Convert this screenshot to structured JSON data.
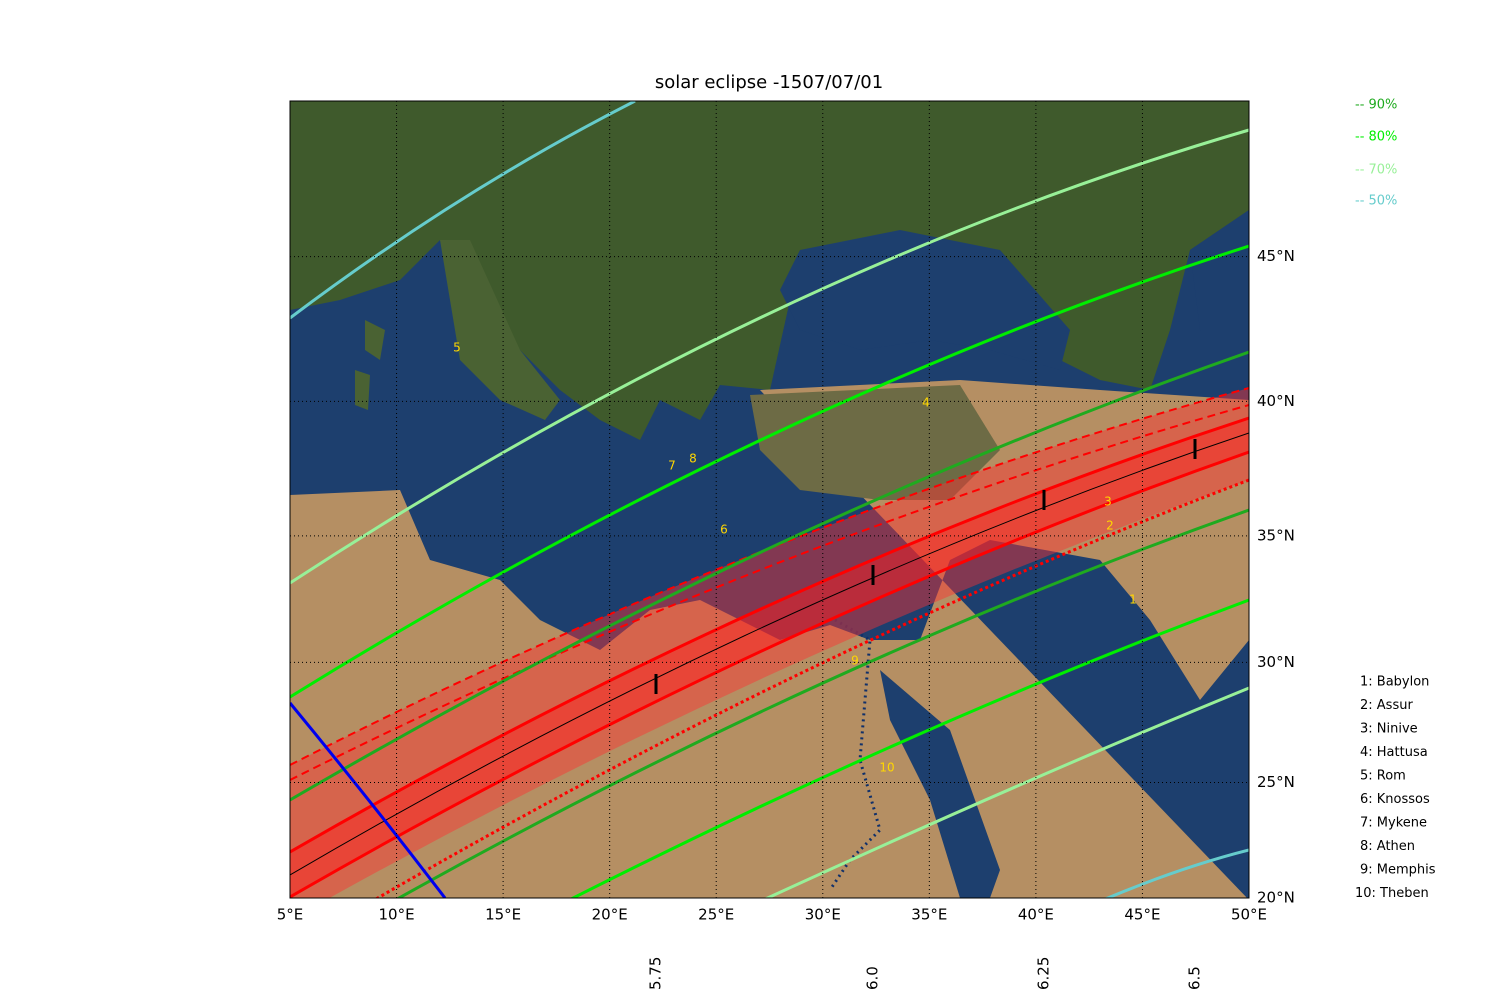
{
  "chart_data": {
    "type": "map",
    "title": "solar eclipse -1507/07/01",
    "projection": "mercator",
    "xlim": [
      5,
      50
    ],
    "ylim": [
      20,
      49.93
    ],
    "xticks": [
      {
        "value": 5,
        "label": "5°E"
      },
      {
        "value": 10,
        "label": "10°E"
      },
      {
        "value": 15,
        "label": "15°E"
      },
      {
        "value": 20,
        "label": "20°E"
      },
      {
        "value": 25,
        "label": "25°E"
      },
      {
        "value": 30,
        "label": "30°E"
      },
      {
        "value": 35,
        "label": "35°E"
      },
      {
        "value": 40,
        "label": "40°E"
      },
      {
        "value": 45,
        "label": "45°E"
      },
      {
        "value": 50,
        "label": "50°E"
      }
    ],
    "yticks": [
      {
        "value": 20,
        "label": "20°N"
      },
      {
        "value": 25,
        "label": "25°N"
      },
      {
        "value": 30,
        "label": "30°N"
      },
      {
        "value": 35,
        "label": "35°N"
      },
      {
        "value": 40,
        "label": "40°N"
      },
      {
        "value": 45,
        "label": "45°N"
      }
    ],
    "grid": true,
    "legend": [
      {
        "name": "-- 90%",
        "color": "#1faa1f"
      },
      {
        "name": "-- 80%",
        "color": "#00ee00"
      },
      {
        "name": "-- 70%",
        "color": "#98f098"
      },
      {
        "name": "-- 50%",
        "color": "#66cccc"
      }
    ],
    "cities": [
      {
        "label": "1",
        "legend": "1: Babylon"
      },
      {
        "label": "2",
        "legend": "2: Assur"
      },
      {
        "label": "3",
        "legend": "3: Ninive"
      },
      {
        "label": "4",
        "legend": "4: Hattusa"
      },
      {
        "label": "5",
        "legend": "5: Rom"
      },
      {
        "label": "6",
        "legend": "6: Knossos"
      },
      {
        "label": "7",
        "legend": "7: Mykene"
      },
      {
        "label": "8",
        "legend": "8: Athen"
      },
      {
        "label": "9",
        "legend": "9: Memphis"
      },
      {
        "label": "10",
        "legend": "10: Theben"
      }
    ],
    "time_ticks": [
      5.75,
      {
        "value": 6,
        "label": "6.0"
      },
      6.25,
      6.5
    ]
  }
}
